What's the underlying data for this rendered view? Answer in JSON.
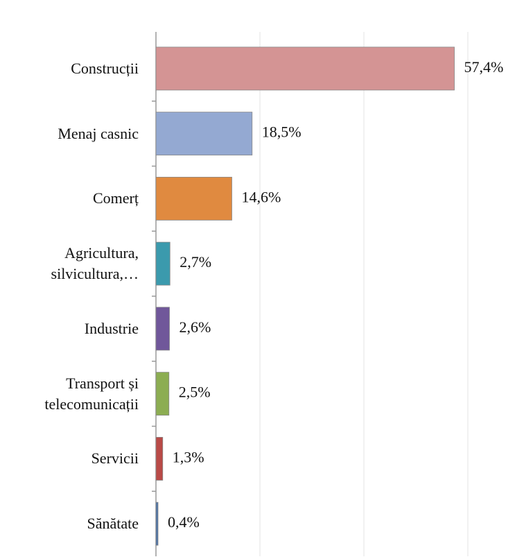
{
  "chart_data": {
    "type": "bar",
    "orientation": "horizontal",
    "categories": [
      "Construcții",
      "Menaj casnic",
      "Comerț",
      "Agricultura,\nsilvicultura,…",
      "Industrie",
      "Transport și\ntelecomunicații",
      "Servicii",
      "Sănătate"
    ],
    "values": [
      57.4,
      18.5,
      14.6,
      2.7,
      2.6,
      2.5,
      1.3,
      0.4
    ],
    "value_labels": [
      "57,4%",
      "18,5%",
      "14,6%",
      "2,7%",
      "2,6%",
      "2,5%",
      "1,3%",
      "0,4%"
    ],
    "colors": [
      "#d49494",
      "#94a9d2",
      "#e08a40",
      "#3b9aad",
      "#70579a",
      "#8cad52",
      "#b94a47",
      "#4e74a8"
    ],
    "xlim": [
      0,
      60
    ],
    "xticks": [
      0,
      20,
      40,
      60
    ],
    "grid": true
  }
}
